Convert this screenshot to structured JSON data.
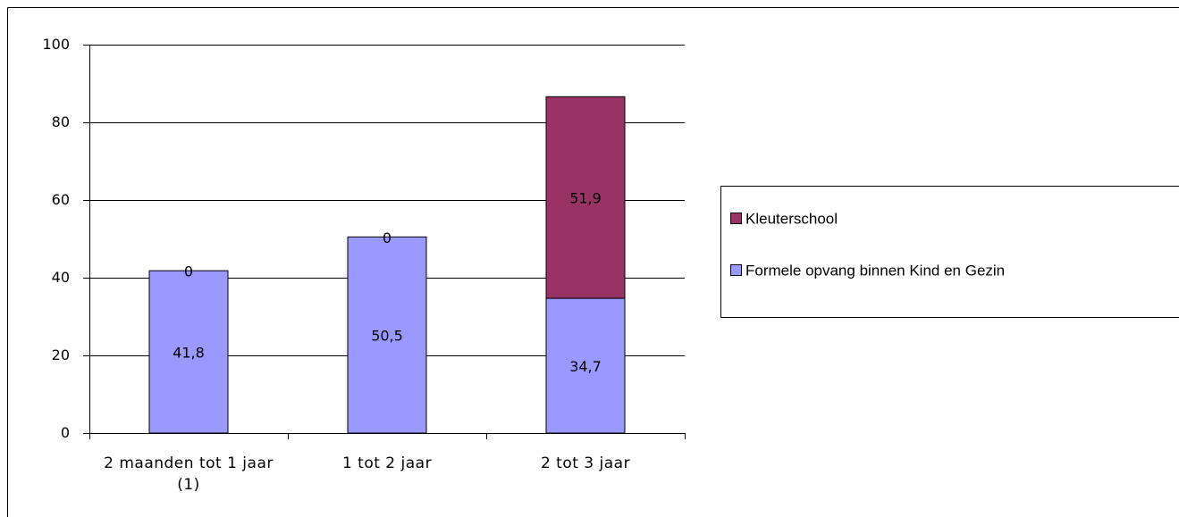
{
  "chart_data": {
    "type": "bar",
    "stacked": true,
    "categories": [
      "2 maanden tot 1 jaar (1)",
      "1 tot 2 jaar",
      "2 tot 3 jaar"
    ],
    "series": [
      {
        "name": "Formele opvang binnen Kind en Gezin",
        "color": "#9999ff",
        "values": [
          41.8,
          50.5,
          34.7
        ],
        "value_labels": [
          "41,8",
          "50,5",
          "34,7"
        ]
      },
      {
        "name": "Kleuterschool",
        "color": "#993366",
        "values": [
          0,
          0,
          51.9
        ],
        "value_labels": [
          "0",
          "0",
          "51,9"
        ]
      }
    ],
    "ylim": [
      0,
      100
    ],
    "yticks": [
      0,
      20,
      40,
      60,
      80,
      100
    ],
    "grid": true,
    "legend": "right"
  }
}
